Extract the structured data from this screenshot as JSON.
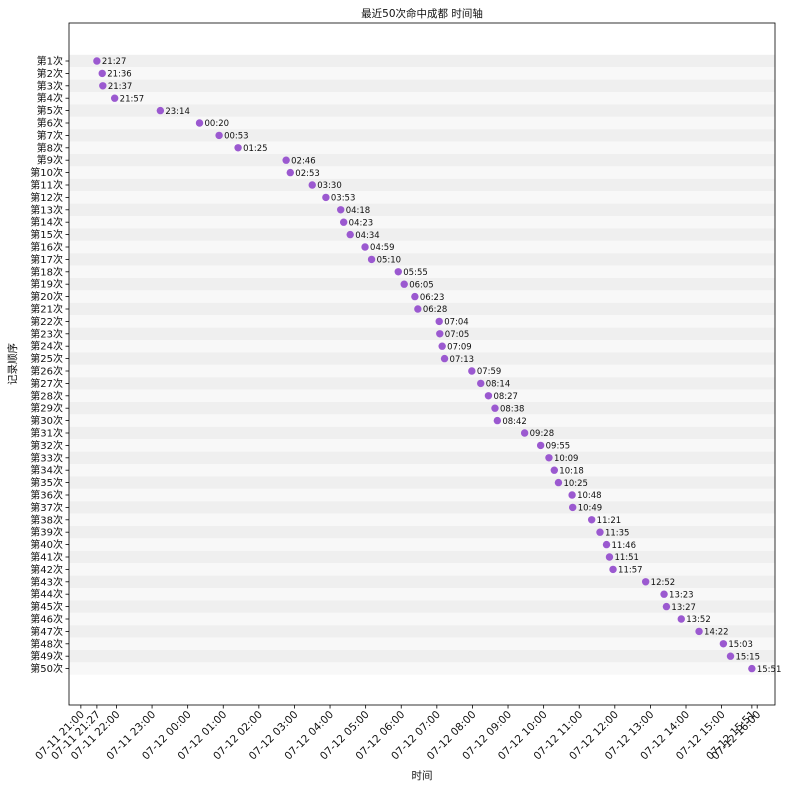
{
  "chart_data": {
    "type": "scatter",
    "title": "最近50次命中成都 时间轴",
    "xlabel": "时间",
    "ylabel": "记录顺序",
    "colors": {
      "point": "#9b59d0",
      "stripe_dark": "#efefef",
      "stripe_light": "#f8f8f8",
      "axis": "#000000"
    },
    "xlim": [
      "07-11 20:40",
      "07-12 16:30"
    ],
    "ylim_label_order": "first at top",
    "x_ticks": [
      {
        "t": "07-11 21:00",
        "label": "07-11 21:00"
      },
      {
        "t": "07-11 21:27",
        "label": "07-11 21:27"
      },
      {
        "t": "07-11 22:00",
        "label": "07-11 22:00"
      },
      {
        "t": "07-11 23:00",
        "label": "07-11 23:00"
      },
      {
        "t": "07-12 00:00",
        "label": "07-12 00:00"
      },
      {
        "t": "07-12 01:00",
        "label": "07-12 01:00"
      },
      {
        "t": "07-12 02:00",
        "label": "07-12 02:00"
      },
      {
        "t": "07-12 03:00",
        "label": "07-12 03:00"
      },
      {
        "t": "07-12 04:00",
        "label": "07-12 04:00"
      },
      {
        "t": "07-12 05:00",
        "label": "07-12 05:00"
      },
      {
        "t": "07-12 06:00",
        "label": "07-12 06:00"
      },
      {
        "t": "07-12 07:00",
        "label": "07-12 07:00"
      },
      {
        "t": "07-12 08:00",
        "label": "07-12 08:00"
      },
      {
        "t": "07-12 09:00",
        "label": "07-12 09:00"
      },
      {
        "t": "07-12 10:00",
        "label": "07-12 10:00"
      },
      {
        "t": "07-12 11:00",
        "label": "07-12 11:00"
      },
      {
        "t": "07-12 12:00",
        "label": "07-12 12:00"
      },
      {
        "t": "07-12 13:00",
        "label": "07-12 13:00"
      },
      {
        "t": "07-12 14:00",
        "label": "07-12 14:00"
      },
      {
        "t": "07-12 15:00",
        "label": "07-12 15:00"
      },
      {
        "t": "07-12 15:51",
        "label": "07-12 15:51"
      },
      {
        "t": "07-12 16:00",
        "label": "07-12 16:00"
      }
    ],
    "points": [
      {
        "label": "第1次",
        "t": "07-11 21:27",
        "time": "21:27"
      },
      {
        "label": "第2次",
        "t": "07-11 21:36",
        "time": "21:36"
      },
      {
        "label": "第3次",
        "t": "07-11 21:37",
        "time": "21:37"
      },
      {
        "label": "第4次",
        "t": "07-11 21:57",
        "time": "21:57"
      },
      {
        "label": "第5次",
        "t": "07-11 23:14",
        "time": "23:14"
      },
      {
        "label": "第6次",
        "t": "07-12 00:20",
        "time": "00:20"
      },
      {
        "label": "第7次",
        "t": "07-12 00:53",
        "time": "00:53"
      },
      {
        "label": "第8次",
        "t": "07-12 01:25",
        "time": "01:25"
      },
      {
        "label": "第9次",
        "t": "07-12 02:46",
        "time": "02:46"
      },
      {
        "label": "第10次",
        "t": "07-12 02:53",
        "time": "02:53"
      },
      {
        "label": "第11次",
        "t": "07-12 03:30",
        "time": "03:30"
      },
      {
        "label": "第12次",
        "t": "07-12 03:53",
        "time": "03:53"
      },
      {
        "label": "第13次",
        "t": "07-12 04:18",
        "time": "04:18"
      },
      {
        "label": "第14次",
        "t": "07-12 04:23",
        "time": "04:23"
      },
      {
        "label": "第15次",
        "t": "07-12 04:34",
        "time": "04:34"
      },
      {
        "label": "第16次",
        "t": "07-12 04:59",
        "time": "04:59"
      },
      {
        "label": "第17次",
        "t": "07-12 05:10",
        "time": "05:10"
      },
      {
        "label": "第18次",
        "t": "07-12 05:55",
        "time": "05:55"
      },
      {
        "label": "第19次",
        "t": "07-12 06:05",
        "time": "06:05"
      },
      {
        "label": "第20次",
        "t": "07-12 06:23",
        "time": "06:23"
      },
      {
        "label": "第21次",
        "t": "07-12 06:28",
        "time": "06:28"
      },
      {
        "label": "第22次",
        "t": "07-12 07:04",
        "time": "07:04"
      },
      {
        "label": "第23次",
        "t": "07-12 07:05",
        "time": "07:05"
      },
      {
        "label": "第24次",
        "t": "07-12 07:09",
        "time": "07:09"
      },
      {
        "label": "第25次",
        "t": "07-12 07:13",
        "time": "07:13"
      },
      {
        "label": "第26次",
        "t": "07-12 07:59",
        "time": "07:59"
      },
      {
        "label": "第27次",
        "t": "07-12 08:14",
        "time": "08:14"
      },
      {
        "label": "第28次",
        "t": "07-12 08:27",
        "time": "08:27"
      },
      {
        "label": "第29次",
        "t": "07-12 08:38",
        "time": "08:38"
      },
      {
        "label": "第30次",
        "t": "07-12 08:42",
        "time": "08:42"
      },
      {
        "label": "第31次",
        "t": "07-12 09:28",
        "time": "09:28"
      },
      {
        "label": "第32次",
        "t": "07-12 09:55",
        "time": "09:55"
      },
      {
        "label": "第33次",
        "t": "07-12 10:09",
        "time": "10:09"
      },
      {
        "label": "第34次",
        "t": "07-12 10:18",
        "time": "10:18"
      },
      {
        "label": "第35次",
        "t": "07-12 10:25",
        "time": "10:25"
      },
      {
        "label": "第36次",
        "t": "07-12 10:48",
        "time": "10:48"
      },
      {
        "label": "第37次",
        "t": "07-12 10:49",
        "time": "10:49"
      },
      {
        "label": "第38次",
        "t": "07-12 11:21",
        "time": "11:21"
      },
      {
        "label": "第39次",
        "t": "07-12 11:35",
        "time": "11:35"
      },
      {
        "label": "第40次",
        "t": "07-12 11:46",
        "time": "11:46"
      },
      {
        "label": "第41次",
        "t": "07-12 11:51",
        "time": "11:51"
      },
      {
        "label": "第42次",
        "t": "07-12 11:57",
        "time": "11:57"
      },
      {
        "label": "第43次",
        "t": "07-12 12:52",
        "time": "12:52"
      },
      {
        "label": "第44次",
        "t": "07-12 13:23",
        "time": "13:23"
      },
      {
        "label": "第45次",
        "t": "07-12 13:27",
        "time": "13:27"
      },
      {
        "label": "第46次",
        "t": "07-12 13:52",
        "time": "13:52"
      },
      {
        "label": "第47次",
        "t": "07-12 14:22",
        "time": "14:22"
      },
      {
        "label": "第48次",
        "t": "07-12 15:03",
        "time": "15:03"
      },
      {
        "label": "第49次",
        "t": "07-12 15:15",
        "time": "15:15"
      },
      {
        "label": "第50次",
        "t": "07-12 15:51",
        "time": "15:51"
      }
    ]
  }
}
